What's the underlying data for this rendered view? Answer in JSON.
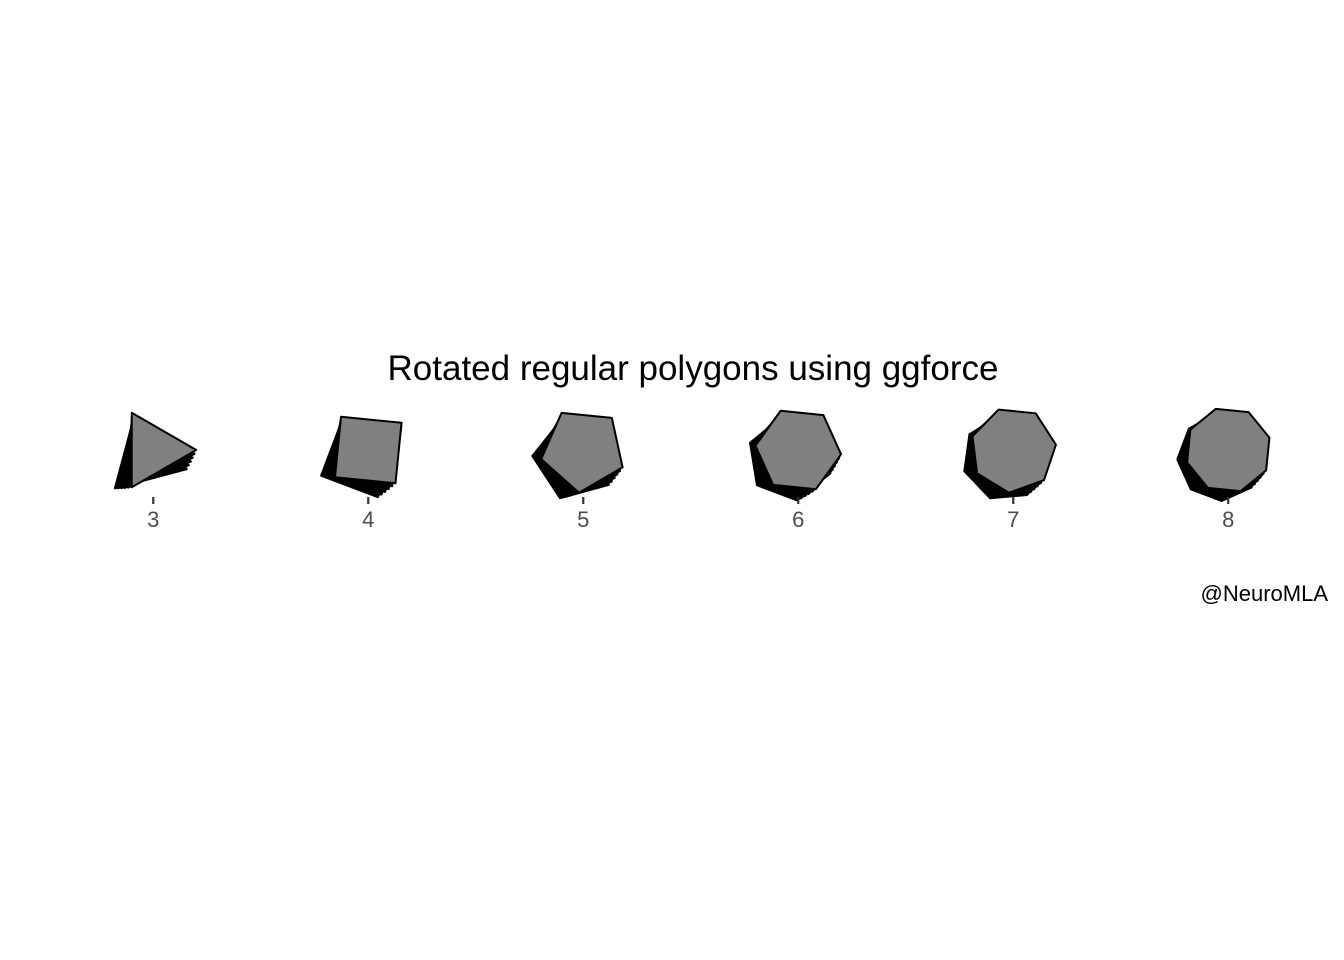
{
  "chart_data": {
    "type": "scatter",
    "title": "Rotated regular polygons using ggforce",
    "caption": "@NeuroMLA",
    "xlabel": "",
    "ylabel": "",
    "x": [
      3,
      4,
      5,
      6,
      7,
      8
    ],
    "tick_labels": [
      "3",
      "4",
      "5",
      "6",
      "7",
      "8"
    ],
    "series": [
      {
        "sides": 3
      },
      {
        "sides": 4
      },
      {
        "sides": 5
      },
      {
        "sides": 6
      },
      {
        "sides": 7
      },
      {
        "sides": 8
      }
    ],
    "layers_per_polygon": 6,
    "rotation_step_degrees": 3,
    "xlim": [
      2.45,
      8.45
    ],
    "grid": false,
    "legend": "none",
    "colors": {
      "fill": "#808080",
      "stroke": "#000000",
      "tick_label": "#4d4d4d"
    }
  }
}
